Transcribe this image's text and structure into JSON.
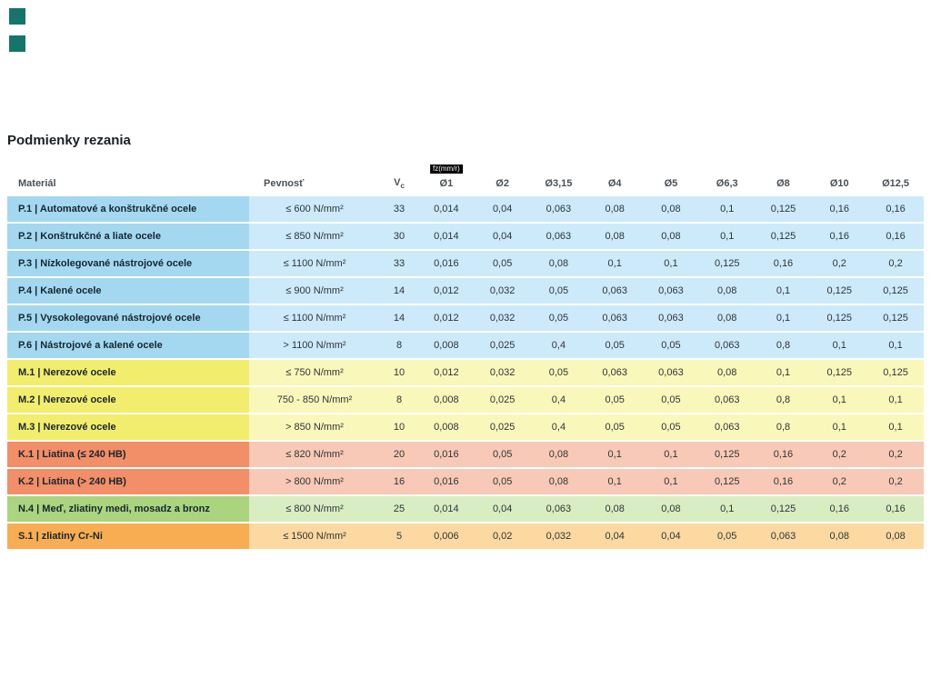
{
  "page": {
    "title": "Podmienky rezania",
    "accent_squares_color": "#15756a"
  },
  "table": {
    "columns": [
      {
        "key": "material",
        "label": "Materiál"
      },
      {
        "key": "pevnost",
        "label": "Pevnosť"
      },
      {
        "key": "vc",
        "label": "V",
        "sub": "c"
      },
      {
        "key": "d1",
        "label": "Ø1",
        "badge": "fz(mm/r)"
      },
      {
        "key": "d2",
        "label": "Ø2"
      },
      {
        "key": "d315",
        "label": "Ø3,15"
      },
      {
        "key": "d4",
        "label": "Ø4"
      },
      {
        "key": "d5",
        "label": "Ø5"
      },
      {
        "key": "d63",
        "label": "Ø6,3"
      },
      {
        "key": "d8",
        "label": "Ø8"
      },
      {
        "key": "d10",
        "label": "Ø10"
      },
      {
        "key": "d125",
        "label": "Ø12,5"
      }
    ],
    "group_colors": {
      "P": {
        "label_bg": "#a3d8f0",
        "row_bg": "#cdeafa"
      },
      "M": {
        "label_bg": "#f3ed6d",
        "row_bg": "#faf7bb"
      },
      "K": {
        "label_bg": "#f28e68",
        "row_bg": "#f8c9b6"
      },
      "N": {
        "label_bg": "#aad47e",
        "row_bg": "#d9edc2"
      },
      "S": {
        "label_bg": "#f8ad52",
        "row_bg": "#fcd9a1"
      }
    },
    "rows": [
      {
        "group": "P",
        "label": "P.1 | Automatové a konštrukčné ocele",
        "pevnost": "≤ 600 N/mm²",
        "vc": "33",
        "values": [
          "0,014",
          "0,04",
          "0,063",
          "0,08",
          "0,08",
          "0,1",
          "0,125",
          "0,16",
          "0,16"
        ]
      },
      {
        "group": "P",
        "label": "P.2 | Konštrukčné a liate ocele",
        "pevnost": "≤ 850 N/mm²",
        "vc": "30",
        "values": [
          "0,014",
          "0,04",
          "0,063",
          "0,08",
          "0,08",
          "0,1",
          "0,125",
          "0,16",
          "0,16"
        ]
      },
      {
        "group": "P",
        "label": "P.3 | Nízkolegované nástrojové ocele",
        "pevnost": "≤ 1100 N/mm²",
        "vc": "33",
        "values": [
          "0,016",
          "0,05",
          "0,08",
          "0,1",
          "0,1",
          "0,125",
          "0,16",
          "0,2",
          "0,2"
        ]
      },
      {
        "group": "P",
        "label": "P.4 | Kalené ocele",
        "pevnost": "≤ 900 N/mm²",
        "vc": "14",
        "values": [
          "0,012",
          "0,032",
          "0,05",
          "0,063",
          "0,063",
          "0,08",
          "0,1",
          "0,125",
          "0,125"
        ]
      },
      {
        "group": "P",
        "label": "P.5 | Vysokolegované nástrojové ocele",
        "pevnost": "≤ 1100 N/mm²",
        "vc": "14",
        "values": [
          "0,012",
          "0,032",
          "0,05",
          "0,063",
          "0,063",
          "0,08",
          "0,1",
          "0,125",
          "0,125"
        ]
      },
      {
        "group": "P",
        "label": "P.6 | Nástrojové a kalené ocele",
        "pevnost": "> 1100 N/mm²",
        "vc": "8",
        "values": [
          "0,008",
          "0,025",
          "0,4",
          "0,05",
          "0,05",
          "0,063",
          "0,8",
          "0,1",
          "0,1"
        ]
      },
      {
        "group": "M",
        "label": "M.1 | Nerezové ocele",
        "pevnost": "≤ 750 N/mm²",
        "vc": "10",
        "values": [
          "0,012",
          "0,032",
          "0,05",
          "0,063",
          "0,063",
          "0,08",
          "0,1",
          "0,125",
          "0,125"
        ]
      },
      {
        "group": "M",
        "label": "M.2 | Nerezové ocele",
        "pevnost": "750 - 850 N/mm²",
        "vc": "8",
        "values": [
          "0,008",
          "0,025",
          "0,4",
          "0,05",
          "0,05",
          "0,063",
          "0,8",
          "0,1",
          "0,1"
        ]
      },
      {
        "group": "M",
        "label": "M.3 | Nerezové ocele",
        "pevnost": "> 850 N/mm²",
        "vc": "10",
        "values": [
          "0,008",
          "0,025",
          "0,4",
          "0,05",
          "0,05",
          "0,063",
          "0,8",
          "0,1",
          "0,1"
        ]
      },
      {
        "group": "K",
        "label": "K.1 | Liatina (≤ 240 HB)",
        "pevnost": "≤ 820 N/mm²",
        "vc": "20",
        "values": [
          "0,016",
          "0,05",
          "0,08",
          "0,1",
          "0,1",
          "0,125",
          "0,16",
          "0,2",
          "0,2"
        ]
      },
      {
        "group": "K",
        "label": "K.2 | Liatina (> 240 HB)",
        "pevnost": "> 800 N/mm²",
        "vc": "16",
        "values": [
          "0,016",
          "0,05",
          "0,08",
          "0,1",
          "0,1",
          "0,125",
          "0,16",
          "0,2",
          "0,2"
        ]
      },
      {
        "group": "N",
        "label": "N.4 | Meď, zliatiny medi, mosadz a bronz",
        "pevnost": "≤ 800 N/mm²",
        "vc": "25",
        "values": [
          "0,014",
          "0,04",
          "0,063",
          "0,08",
          "0,08",
          "0,1",
          "0,125",
          "0,16",
          "0,16"
        ]
      },
      {
        "group": "S",
        "label": "S.1 | zliatiny Cr-Ni",
        "pevnost": "≤ 1500 N/mm²",
        "vc": "5",
        "values": [
          "0,006",
          "0,02",
          "0,032",
          "0,04",
          "0,04",
          "0,05",
          "0,063",
          "0,08",
          "0,08"
        ]
      }
    ]
  }
}
